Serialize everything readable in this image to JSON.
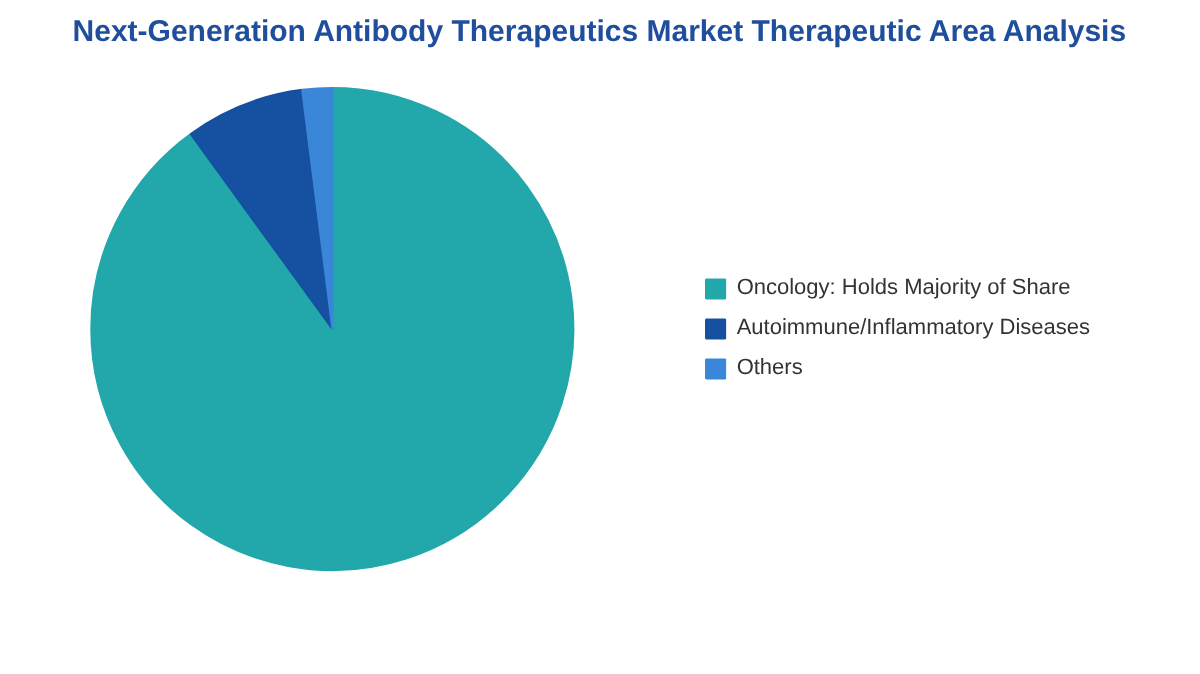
{
  "chart_data": {
    "type": "pie",
    "title": "Next-Generation Antibody Therapeutics Market Therapeutic Area Analysis",
    "categories": [
      "Oncology: Holds Majority of Share",
      "Autoimmune/Inflammatory Diseases",
      "Others"
    ],
    "values": [
      90,
      8,
      2
    ],
    "colors": [
      "#22a7ab",
      "#1650a0",
      "#3a86d8"
    ],
    "legend": "right"
  }
}
